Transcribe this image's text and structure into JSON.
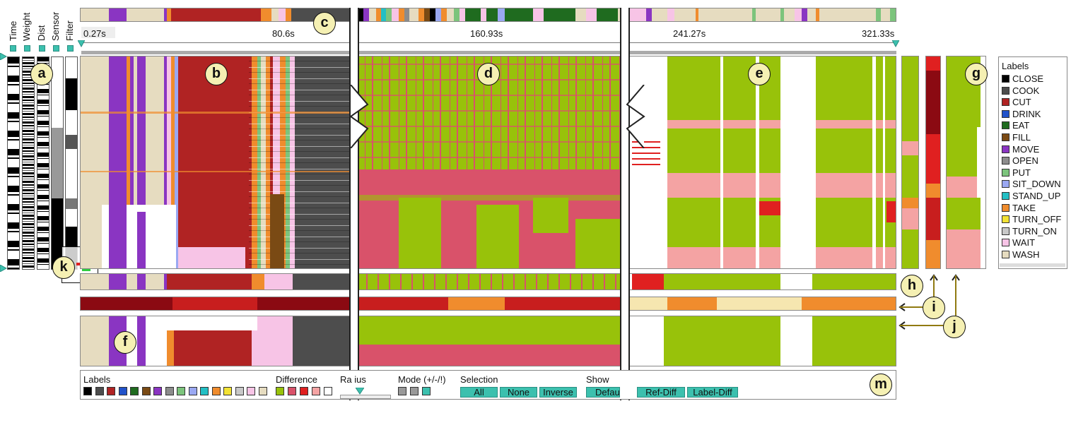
{
  "columns": [
    "Time",
    "Weight",
    "Dist",
    "Sensor",
    "Filter"
  ],
  "callouts": [
    "a",
    "b",
    "c",
    "d",
    "e",
    "f",
    "g",
    "h",
    "i",
    "j",
    "k",
    "m"
  ],
  "timeline": {
    "ticks": [
      "0.27s",
      "80.6s",
      "160.93s",
      "241.27s",
      "321.33s"
    ]
  },
  "colors": {
    "CLOSE": "#000000",
    "COOK": "#4d4d4d",
    "CUT": "#b02323",
    "DRINK": "#2152c9",
    "EAT": "#1f6b1f",
    "FILL": "#7a4a14",
    "MOVE": "#8a35c2",
    "OPEN": "#8c8c8c",
    "PUT": "#7cc47c",
    "SIT_DOWN": "#9aa8f2",
    "STAND_UP": "#23bfc4",
    "TAKE": "#f08c2d",
    "TURN_OFF": "#f2e235",
    "TURN_ON": "#c8c8c8",
    "WAIT": "#f7c4e6",
    "WASH": "#e6dcc0",
    "green": "#98c20a",
    "rose": "#d9526a",
    "pink": "#f4a3a3",
    "red": "#e02020",
    "white": "#ffffff"
  },
  "legend": {
    "title": "Labels",
    "items": [
      "CLOSE",
      "COOK",
      "CUT",
      "DRINK",
      "EAT",
      "FILL",
      "MOVE",
      "OPEN",
      "PUT",
      "SIT_DOWN",
      "STAND_UP",
      "TAKE",
      "TURN_OFF",
      "TURN_ON",
      "WAIT",
      "WASH"
    ]
  },
  "controls": {
    "labels_title": "Labels",
    "difference_title": "Difference",
    "radius_title": "Ra  ius",
    "mode_title": "Mode (+/-/!)",
    "selection_title": "Selection",
    "show_title": "Show",
    "selection_buttons": [
      "All",
      "None",
      "Inverse"
    ],
    "show_buttons": [
      "Defau",
      "Ref-Diff",
      "Label-Diff"
    ]
  }
}
